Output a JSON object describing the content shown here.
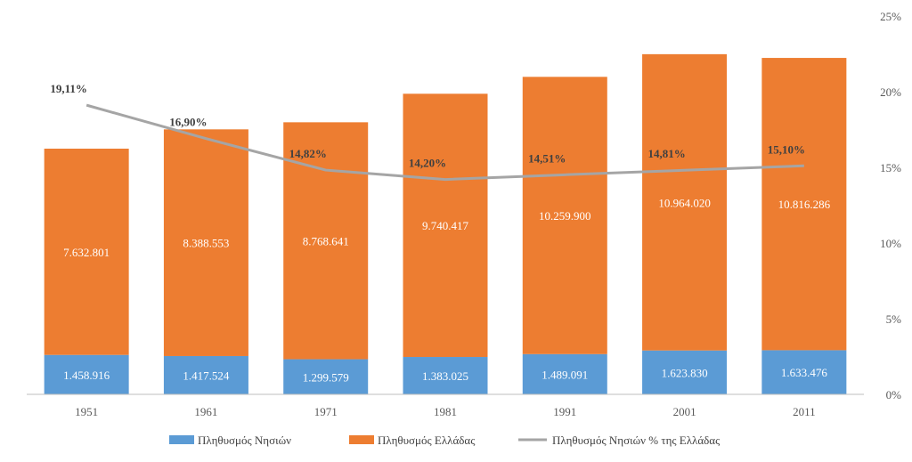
{
  "chart_data": {
    "type": "bar",
    "stacked": true,
    "categories": [
      "1951",
      "1961",
      "1971",
      "1981",
      "1991",
      "2001",
      "2011"
    ],
    "series": [
      {
        "name": "Πληθυσμός Νησιών",
        "kind": "bar",
        "color": "#5B9BD5",
        "values": [
          1458916,
          1417524,
          1299579,
          1383025,
          1489091,
          1623830,
          1633476
        ],
        "labels": [
          "1.458.916",
          "1.417.524",
          "1.299.579",
          "1.383.025",
          "1.489.091",
          "1.623.830",
          "1.633.476"
        ]
      },
      {
        "name": "Πληθυσμός Ελλάδας",
        "kind": "bar",
        "color": "#ED7D31",
        "values": [
          7632801,
          8388553,
          8768641,
          9740417,
          10259900,
          10964020,
          10816286
        ],
        "labels": [
          "7.632.801",
          "8.388.553",
          "8.768.641",
          "9.740.417",
          "10.259.900",
          "10.964.020",
          "10.816.286"
        ]
      },
      {
        "name": "Πληθυσμός Νησιών % της Ελλάδας",
        "kind": "line",
        "axis": "right",
        "color": "#A5A5A5",
        "values": [
          19.11,
          16.9,
          14.82,
          14.2,
          14.51,
          14.81,
          15.1
        ],
        "labels": [
          "19,11%",
          "16,90%",
          "14,82%",
          "14,20%",
          "14,51%",
          "14,81%",
          "15,10%"
        ]
      }
    ],
    "y_left_range": [
      0,
      14000000
    ],
    "y_right_range": [
      0,
      25
    ],
    "y_right_ticks": [
      "0%",
      "5%",
      "10%",
      "15%",
      "20%",
      "25%"
    ],
    "legend_position": "bottom",
    "grid": false
  }
}
